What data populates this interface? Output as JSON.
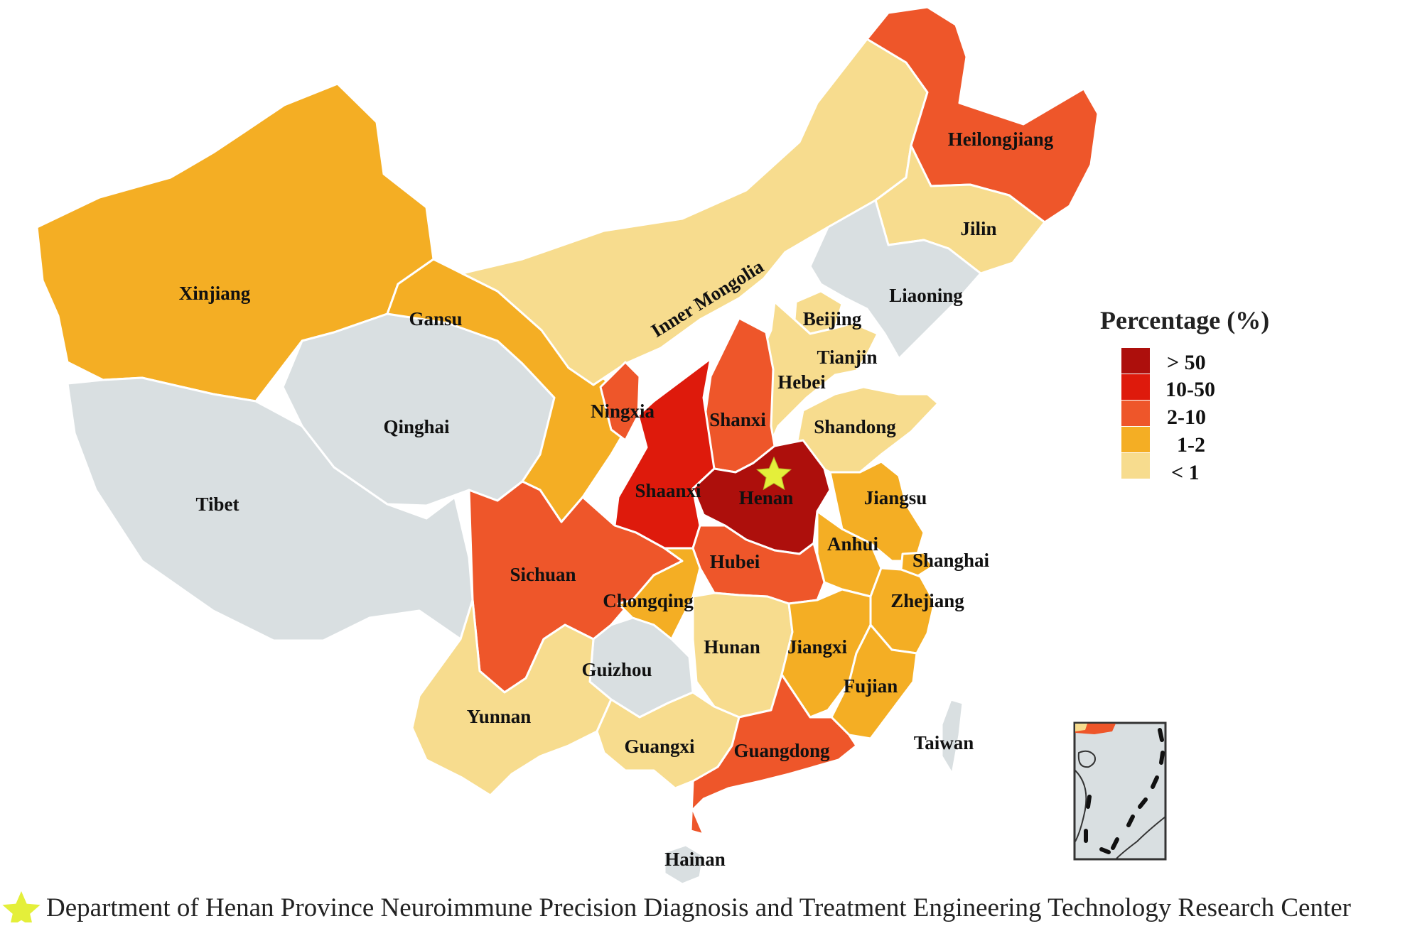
{
  "colors": {
    "gt50": "#ad0f0c",
    "r10_50": "#de1a0c",
    "r2_10": "#ee562a",
    "r1_2": "#f4ae24",
    "lt1": "#f7dc8e",
    "nodata": "#d9dfe1",
    "star": "#e4ef3a"
  },
  "provinces": [
    {
      "id": "xinjiang",
      "name": "Xinjiang",
      "cls": "r1_2"
    },
    {
      "id": "tibet",
      "name": "Tibet",
      "cls": "nodata"
    },
    {
      "id": "qinghai",
      "name": "Qinghai",
      "cls": "nodata"
    },
    {
      "id": "gansu",
      "name": "Gansu",
      "cls": "r1_2"
    },
    {
      "id": "inner_mongolia",
      "name": "Inner Mongolia",
      "cls": "lt1"
    },
    {
      "id": "heilongjiang",
      "name": "Heilongjiang",
      "cls": "r2_10"
    },
    {
      "id": "jilin",
      "name": "Jilin",
      "cls": "lt1"
    },
    {
      "id": "liaoning",
      "name": "Liaoning",
      "cls": "nodata"
    },
    {
      "id": "beijing",
      "name": "Beijing",
      "cls": "lt1"
    },
    {
      "id": "tianjin",
      "name": "Tianjin",
      "cls": "lt1"
    },
    {
      "id": "hebei",
      "name": "Hebei",
      "cls": "lt1"
    },
    {
      "id": "shandong",
      "name": "Shandong",
      "cls": "lt1"
    },
    {
      "id": "shanxi",
      "name": "Shanxi",
      "cls": "r2_10"
    },
    {
      "id": "ningxia",
      "name": "Ningxia",
      "cls": "r2_10"
    },
    {
      "id": "shaanxi",
      "name": "Shaanxi",
      "cls": "r10_50"
    },
    {
      "id": "henan",
      "name": "Henan",
      "cls": "gt50"
    },
    {
      "id": "jiangsu",
      "name": "Jiangsu",
      "cls": "r1_2"
    },
    {
      "id": "anhui",
      "name": "Anhui",
      "cls": "r1_2"
    },
    {
      "id": "shanghai",
      "name": "Shanghai",
      "cls": "r1_2"
    },
    {
      "id": "zhejiang",
      "name": "Zhejiang",
      "cls": "r1_2"
    },
    {
      "id": "hubei",
      "name": "Hubei",
      "cls": "r2_10"
    },
    {
      "id": "sichuan",
      "name": "Sichuan",
      "cls": "r2_10"
    },
    {
      "id": "chongqing",
      "name": "Chongqing",
      "cls": "r1_2"
    },
    {
      "id": "hunan",
      "name": "Hunan",
      "cls": "lt1"
    },
    {
      "id": "jiangxi",
      "name": "Jiangxi",
      "cls": "r1_2"
    },
    {
      "id": "fujian",
      "name": "Fujian",
      "cls": "r1_2"
    },
    {
      "id": "guizhou",
      "name": "Guizhou",
      "cls": "nodata"
    },
    {
      "id": "yunnan",
      "name": "Yunnan",
      "cls": "lt1"
    },
    {
      "id": "guangxi",
      "name": "Guangxi",
      "cls": "lt1"
    },
    {
      "id": "guangdong",
      "name": "Guangdong",
      "cls": "r2_10"
    },
    {
      "id": "taiwan",
      "name": "Taiwan",
      "cls": "nodata"
    },
    {
      "id": "hainan",
      "name": "Hainan",
      "cls": "nodata"
    }
  ],
  "legend": {
    "title": "Percentage (%)",
    "items": [
      {
        "label": "> 50",
        "cls": "gt50"
      },
      {
        "label": "10-50",
        "cls": "r10_50"
      },
      {
        "label": "2-10",
        "cls": "r2_10"
      },
      {
        "label": "1-2",
        "cls": "r1_2"
      },
      {
        "label": "< 1",
        "cls": "lt1"
      }
    ]
  },
  "marker": {
    "icon": "star-icon",
    "province": "henan"
  },
  "caption": "Department of Henan Province Neuroimmune Precision Diagnosis and Treatment Engineering Technology Research Center"
}
